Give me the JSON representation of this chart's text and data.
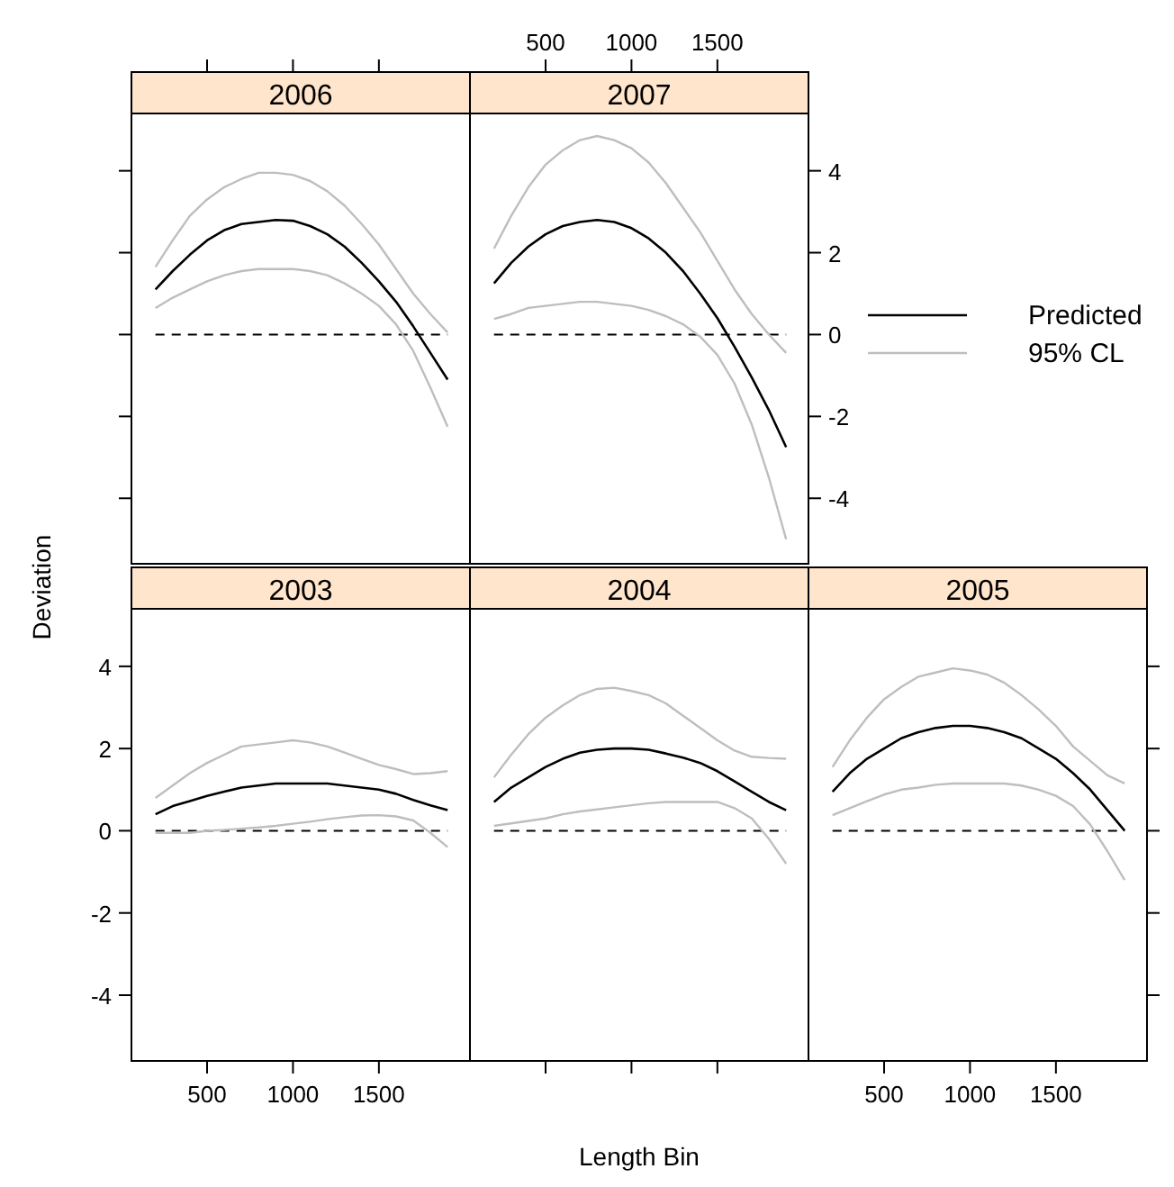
{
  "chart_data": [
    {
      "type": "line",
      "title": "2006",
      "x": [
        200,
        300,
        400,
        500,
        600,
        700,
        800,
        900,
        1000,
        1100,
        1200,
        1300,
        1400,
        1500,
        1600,
        1700,
        1800,
        1900
      ],
      "xlim": [
        60,
        2030
      ],
      "xticks": [
        500,
        1000,
        1500
      ],
      "ylim": [
        -5.6,
        5.4
      ],
      "yticks": [
        -4,
        -2,
        0,
        2,
        4
      ],
      "tick_labels": false,
      "series": [
        {
          "color": "#000000",
          "values": [
            1.1,
            1.55,
            1.95,
            2.3,
            2.55,
            2.7,
            2.75,
            2.8,
            2.78,
            2.65,
            2.45,
            2.15,
            1.75,
            1.3,
            0.8,
            0.2,
            -0.45,
            -1.1
          ]
        },
        {
          "color": "#bebebe",
          "values": [
            1.65,
            2.3,
            2.9,
            3.3,
            3.6,
            3.8,
            3.95,
            3.95,
            3.9,
            3.75,
            3.5,
            3.15,
            2.7,
            2.2,
            1.6,
            1.0,
            0.5,
            0.05
          ]
        },
        {
          "color": "#bebebe",
          "values": [
            0.65,
            0.9,
            1.1,
            1.3,
            1.45,
            1.55,
            1.6,
            1.6,
            1.6,
            1.55,
            1.45,
            1.25,
            1.0,
            0.7,
            0.25,
            -0.4,
            -1.3,
            -2.25
          ]
        }
      ],
      "ref_lines": [
        {
          "axis": "y",
          "value": 0,
          "color": "#000000",
          "line_style": "dashed"
        }
      ]
    },
    {
      "type": "line",
      "title": "2007",
      "x": [
        200,
        300,
        400,
        500,
        600,
        700,
        800,
        900,
        1000,
        1100,
        1200,
        1300,
        1400,
        1500,
        1600,
        1700,
        1800,
        1900
      ],
      "xlim": [
        60,
        2030
      ],
      "xticks": [
        500,
        1000,
        1500
      ],
      "y2lim": [
        -5.6,
        5.4
      ],
      "y2ticks": [
        -4,
        -2,
        0,
        2,
        4
      ],
      "legend": "right",
      "series": [
        {
          "name": "Predicted",
          "color": "#000000",
          "axis": "y2",
          "values": [
            1.25,
            1.75,
            2.15,
            2.45,
            2.65,
            2.75,
            2.8,
            2.75,
            2.6,
            2.35,
            2.0,
            1.55,
            1.0,
            0.4,
            -0.3,
            -1.05,
            -1.85,
            -2.75
          ]
        },
        {
          "name": "95% CL",
          "color": "#bebebe",
          "axis": "y2",
          "values": [
            2.1,
            2.9,
            3.6,
            4.15,
            4.5,
            4.75,
            4.85,
            4.75,
            4.55,
            4.2,
            3.7,
            3.1,
            2.5,
            1.8,
            1.1,
            0.5,
            0.0,
            -0.45
          ]
        },
        {
          "color": "#bebebe",
          "axis": "y2",
          "values": [
            0.38,
            0.5,
            0.65,
            0.7,
            0.75,
            0.8,
            0.8,
            0.75,
            0.7,
            0.6,
            0.45,
            0.25,
            -0.05,
            -0.5,
            -1.2,
            -2.2,
            -3.5,
            -5.0
          ]
        }
      ],
      "ref_lines": [
        {
          "axis": "y2",
          "value": 0,
          "color": "#000000",
          "line_style": "dashed"
        }
      ]
    },
    {
      "type": "line",
      "title": "2003",
      "ylabel": "Deviation",
      "x": [
        200,
        300,
        400,
        500,
        600,
        700,
        800,
        900,
        1000,
        1100,
        1200,
        1300,
        1400,
        1500,
        1600,
        1700,
        1800,
        1900
      ],
      "xlim": [
        60,
        2030
      ],
      "xticks": [
        500,
        1000,
        1500
      ],
      "ylim": [
        -5.6,
        5.4
      ],
      "yticks": [
        -4,
        -2,
        0,
        2,
        4
      ],
      "series": [
        {
          "color": "#000000",
          "values": [
            0.4,
            0.6,
            0.72,
            0.85,
            0.95,
            1.05,
            1.1,
            1.15,
            1.15,
            1.15,
            1.15,
            1.1,
            1.05,
            1.0,
            0.9,
            0.75,
            0.62,
            0.5
          ]
        },
        {
          "color": "#bebebe",
          "values": [
            0.8,
            1.1,
            1.4,
            1.65,
            1.85,
            2.05,
            2.1,
            2.15,
            2.2,
            2.15,
            2.05,
            1.9,
            1.75,
            1.6,
            1.5,
            1.38,
            1.4,
            1.45
          ]
        },
        {
          "color": "#bebebe",
          "values": [
            -0.05,
            -0.05,
            -0.05,
            0.0,
            0.02,
            0.05,
            0.08,
            0.12,
            0.17,
            0.22,
            0.28,
            0.33,
            0.37,
            0.38,
            0.35,
            0.25,
            -0.05,
            -0.4
          ]
        }
      ],
      "ref_lines": [
        {
          "axis": "y",
          "value": 0,
          "color": "#000000",
          "line_style": "dashed"
        }
      ]
    },
    {
      "type": "line",
      "title": "2004",
      "xlabel": "Length Bin",
      "x": [
        200,
        300,
        400,
        500,
        600,
        700,
        800,
        900,
        1000,
        1100,
        1200,
        1300,
        1400,
        1500,
        1600,
        1700,
        1800,
        1900
      ],
      "xlim": [
        60,
        2030
      ],
      "xticks": [
        500,
        1000,
        1500
      ],
      "ylim": [
        -5.6,
        5.4
      ],
      "tick_labels": false,
      "series": [
        {
          "color": "#000000",
          "values": [
            0.7,
            1.05,
            1.3,
            1.55,
            1.75,
            1.9,
            1.97,
            2.0,
            2.0,
            1.97,
            1.88,
            1.78,
            1.65,
            1.45,
            1.2,
            0.95,
            0.7,
            0.5
          ]
        },
        {
          "color": "#bebebe",
          "values": [
            1.3,
            1.85,
            2.35,
            2.75,
            3.05,
            3.3,
            3.45,
            3.48,
            3.4,
            3.3,
            3.1,
            2.8,
            2.5,
            2.2,
            1.95,
            1.8,
            1.77,
            1.75
          ]
        },
        {
          "color": "#bebebe",
          "values": [
            0.12,
            0.18,
            0.24,
            0.3,
            0.4,
            0.47,
            0.52,
            0.57,
            0.62,
            0.67,
            0.7,
            0.7,
            0.7,
            0.7,
            0.55,
            0.3,
            -0.2,
            -0.8
          ]
        }
      ],
      "ref_lines": [
        {
          "axis": "y",
          "value": 0,
          "color": "#000000",
          "line_style": "dashed"
        }
      ]
    },
    {
      "type": "line",
      "title": "2005",
      "x": [
        200,
        300,
        400,
        500,
        600,
        700,
        800,
        900,
        1000,
        1100,
        1200,
        1300,
        1400,
        1500,
        1600,
        1700,
        1800,
        1900
      ],
      "xlim": [
        60,
        2030
      ],
      "xticks": [
        500,
        1000,
        1500
      ],
      "ylim": [
        -5.6,
        5.4
      ],
      "yticks": [
        -4,
        -2,
        0,
        2,
        4
      ],
      "tick_labels": "x",
      "series": [
        {
          "color": "#000000",
          "values": [
            0.95,
            1.4,
            1.75,
            2.0,
            2.25,
            2.4,
            2.5,
            2.55,
            2.55,
            2.5,
            2.4,
            2.25,
            2.0,
            1.75,
            1.4,
            1.0,
            0.5,
            0.0
          ]
        },
        {
          "color": "#bebebe",
          "values": [
            1.55,
            2.2,
            2.75,
            3.2,
            3.5,
            3.75,
            3.85,
            3.95,
            3.9,
            3.8,
            3.6,
            3.3,
            2.95,
            2.55,
            2.05,
            1.7,
            1.35,
            1.15
          ]
        },
        {
          "color": "#bebebe",
          "values": [
            0.38,
            0.55,
            0.72,
            0.88,
            1.0,
            1.05,
            1.12,
            1.15,
            1.15,
            1.15,
            1.15,
            1.1,
            1.0,
            0.85,
            0.6,
            0.15,
            -0.5,
            -1.2
          ]
        }
      ],
      "ref_lines": [
        {
          "axis": "y",
          "value": 0,
          "color": "#000000",
          "line_style": "dashed"
        }
      ]
    }
  ]
}
